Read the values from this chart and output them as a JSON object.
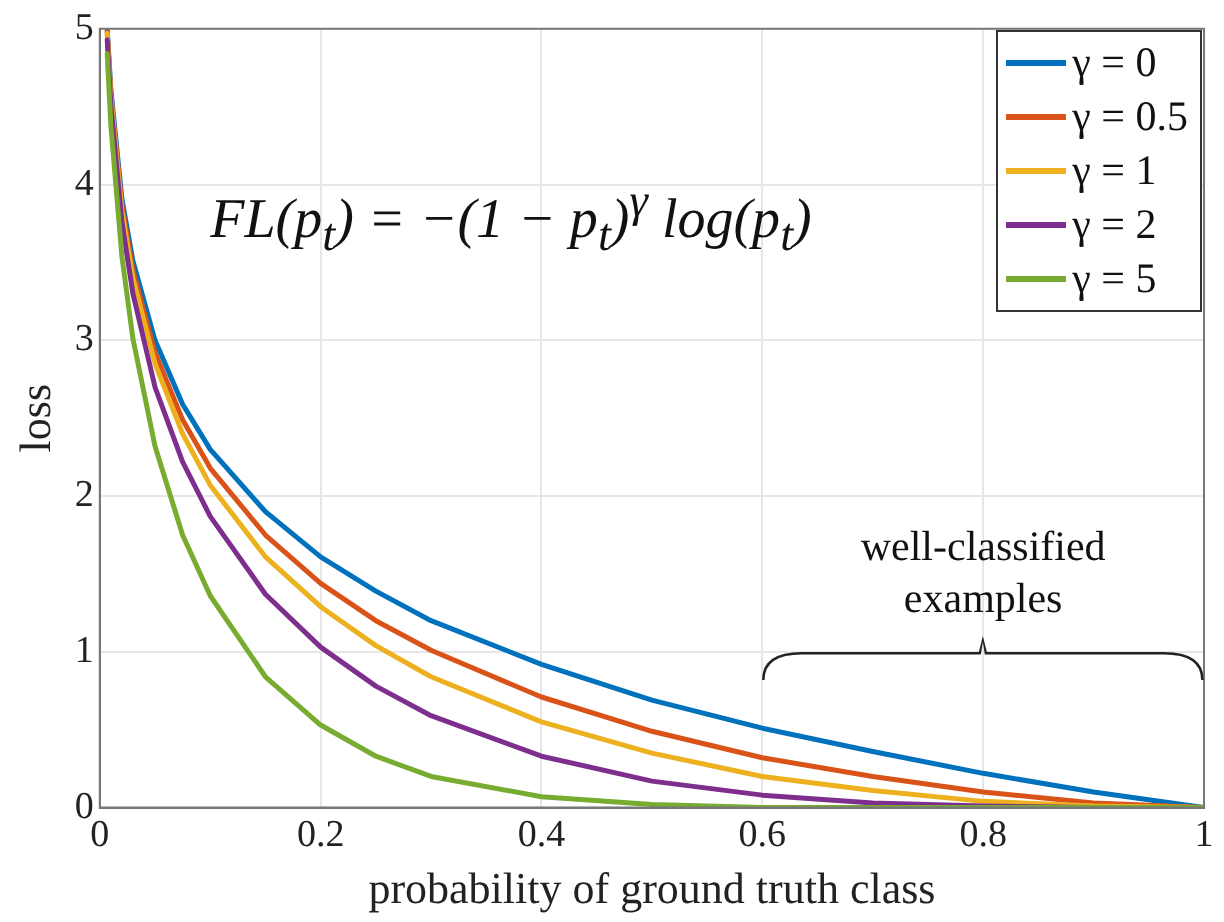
{
  "chart_data": {
    "type": "line",
    "xlabel": "probability of ground truth class",
    "ylabel": "loss",
    "x": [
      0.0067,
      0.01,
      0.02,
      0.03,
      0.05,
      0.075,
      0.1,
      0.15,
      0.2,
      0.25,
      0.3,
      0.4,
      0.5,
      0.6,
      0.7,
      0.8,
      0.9,
      1
    ],
    "series": [
      {
        "name": "γ = 0",
        "color": "#0072bd",
        "values": [
          5.0,
          4.61,
          3.91,
          3.51,
          3.0,
          2.59,
          2.3,
          1.9,
          1.61,
          1.39,
          1.2,
          0.92,
          0.69,
          0.51,
          0.36,
          0.22,
          0.1,
          0
        ]
      },
      {
        "name": "γ = 0.5",
        "color": "#d95319",
        "values": [
          4.98,
          4.58,
          3.87,
          3.45,
          2.92,
          2.49,
          2.18,
          1.75,
          1.44,
          1.2,
          1.01,
          0.71,
          0.49,
          0.32,
          0.2,
          0.1,
          0.03,
          0
        ]
      },
      {
        "name": "γ = 1",
        "color": "#edb120",
        "values": [
          4.97,
          4.56,
          3.83,
          3.4,
          2.85,
          2.4,
          2.07,
          1.61,
          1.29,
          1.04,
          0.84,
          0.55,
          0.35,
          0.2,
          0.11,
          0.04,
          0.01,
          0
        ]
      },
      {
        "name": "γ = 2",
        "color": "#7e2f8e",
        "values": [
          4.93,
          4.51,
          3.76,
          3.3,
          2.7,
          2.22,
          1.87,
          1.37,
          1.03,
          0.78,
          0.59,
          0.33,
          0.17,
          0.08,
          0.03,
          0.01,
          0,
          0
        ]
      },
      {
        "name": "γ = 5",
        "color": "#77ac30",
        "values": [
          4.84,
          4.38,
          3.54,
          3.01,
          2.32,
          1.75,
          1.36,
          0.84,
          0.53,
          0.33,
          0.2,
          0.07,
          0.02,
          0,
          0,
          0,
          0,
          0
        ]
      }
    ],
    "xlim": [
      0,
      1
    ],
    "xticks": [
      0,
      0.2,
      0.4,
      0.6,
      0.8,
      1
    ],
    "ylim": [
      0,
      5
    ],
    "yticks": [
      0,
      1,
      2,
      3,
      4,
      5
    ],
    "grid": true,
    "legend": "top right",
    "marker": "none",
    "line_style": "solid",
    "annotations": [
      "FL(p$_{t}$) = −(1 − p$_{t}$)$^{γ}$ log(p$_{t}$)",
      "well-classified examples"
    ]
  }
}
